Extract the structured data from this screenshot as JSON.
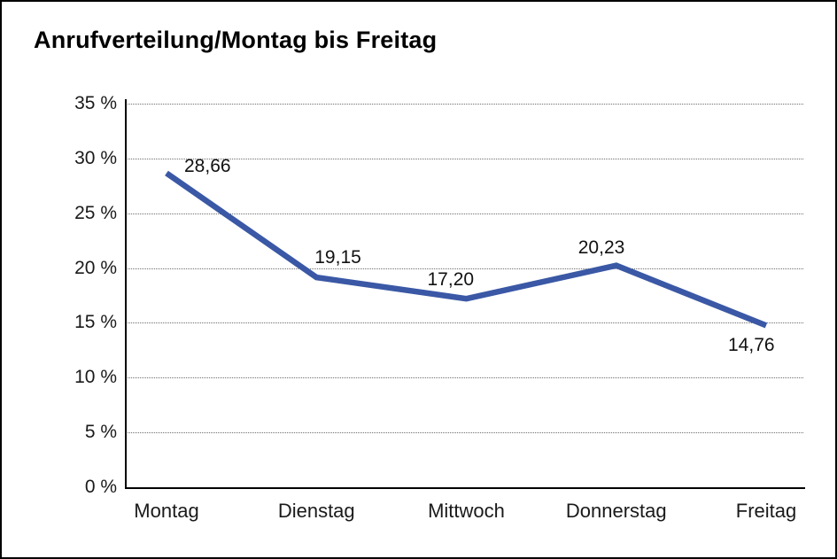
{
  "window": {
    "background": "#ffffff",
    "border_color": "#000000"
  },
  "header": {
    "title": "Anrufverteilung/Montag bis Freitag"
  },
  "chart_data": {
    "type": "line",
    "title": "Anrufverteilung/Montag bis Freitag",
    "categories": [
      "Montag",
      "Dienstag",
      "Mittwoch",
      "Donnerstag",
      "Freitag"
    ],
    "values": [
      28.66,
      19.15,
      17.2,
      20.23,
      14.76
    ],
    "point_labels": [
      "28,66",
      "19,15",
      "17,20",
      "20,23",
      "14,76"
    ],
    "yticks": [
      {
        "value": 35,
        "label": "35 %"
      },
      {
        "value": 30,
        "label": "30 %"
      },
      {
        "value": 25,
        "label": "25 %"
      },
      {
        "value": 20,
        "label": "20 %"
      },
      {
        "value": 15,
        "label": "15 %"
      },
      {
        "value": 10,
        "label": "10 %"
      },
      {
        "value": 5,
        "label": "5 %"
      },
      {
        "value": 0,
        "label": "0 %"
      }
    ],
    "ylim": [
      0,
      35
    ],
    "xlabel": "",
    "ylabel": "",
    "grid": "horizontal-dotted",
    "legend": "none",
    "line_color": "#3A58A5",
    "grid_color": "#6e6e6e",
    "axis_color": "#000000",
    "text_color": "#1a1a1a"
  }
}
